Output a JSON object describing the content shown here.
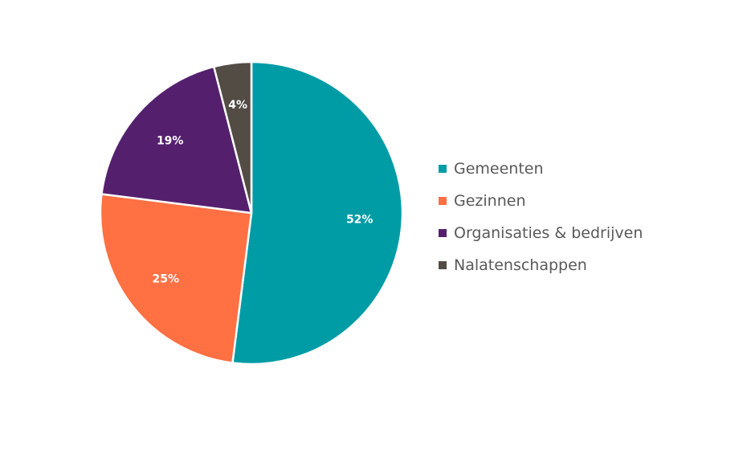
{
  "chart_data": {
    "type": "pie",
    "title": "",
    "categories": [
      "Gemeenten",
      "Gezinnen",
      "Organisaties & bedrijven",
      "Nalatenschappen"
    ],
    "values": [
      52,
      25,
      19,
      4
    ],
    "value_labels": [
      "52%",
      "25%",
      "19%",
      "4%"
    ],
    "colors": [
      "#009ca6",
      "#ff7043",
      "#54206e",
      "#524c45"
    ],
    "start_angle_deg": 0,
    "direction": "clockwise",
    "legend_position": "right"
  }
}
